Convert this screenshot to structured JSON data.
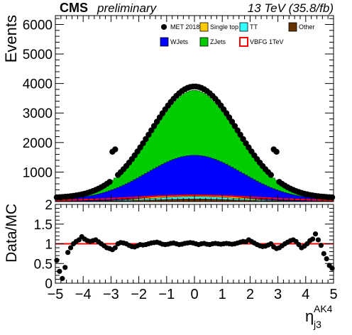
{
  "header": {
    "experiment": "CMS",
    "status": "preliminary",
    "energy": "13 TeV (35.8/fb)"
  },
  "chart_data": [
    {
      "type": "stacked-histogram",
      "ylabel": "Events",
      "xlim": [
        -5,
        5
      ],
      "ylim": [
        0,
        6300
      ],
      "y_ticks": [
        1000,
        2000,
        3000,
        4000,
        5000,
        6000
      ],
      "x_ticks": [
        -5,
        -4,
        -3,
        -2,
        -1,
        0,
        1,
        2,
        3,
        4,
        5
      ],
      "bin_width": 0.1,
      "legend": [
        {
          "name": "MET 2018",
          "style": "marker",
          "color": "#000000"
        },
        {
          "name": "Single top",
          "style": "fill",
          "color": "#ffcc00"
        },
        {
          "name": "TT",
          "style": "fill",
          "color": "#33ffff"
        },
        {
          "name": "Other",
          "style": "fill",
          "color": "#663300"
        },
        {
          "name": "WJets",
          "style": "fill",
          "color": "#0000ff"
        },
        {
          "name": "ZJets",
          "style": "fill",
          "color": "#00cc00"
        },
        {
          "name": "VBFG 1TeV",
          "style": "line",
          "color": "#ff0000"
        }
      ],
      "stack_order": [
        "Other",
        "TT",
        "Single top",
        "WJets",
        "ZJets"
      ],
      "series": [
        {
          "name": "MET 2018",
          "shape": "gaussian",
          "peak": 3900,
          "width": 1.55,
          "floor": 120,
          "spike_x": [
            -2.9,
            2.9
          ],
          "spike_extra": 950
        },
        {
          "name": "ZJets",
          "shape": "gaussian",
          "peak": 2200,
          "width": 1.45,
          "floor": 50
        },
        {
          "name": "WJets",
          "shape": "gaussian",
          "peak": 1330,
          "width": 1.75,
          "floor": 40
        },
        {
          "name": "Single top",
          "shape": "gaussian",
          "peak": 70,
          "width": 1.6,
          "floor": 4
        },
        {
          "name": "TT",
          "shape": "gaussian",
          "peak": 80,
          "width": 1.5,
          "floor": 5
        },
        {
          "name": "Other",
          "shape": "gaussian",
          "peak": 90,
          "width": 1.5,
          "floor": 6
        },
        {
          "name": "VBFG 1TeV",
          "shape": "gaussian",
          "peak": 210,
          "width": 2.2,
          "floor": 30
        }
      ]
    },
    {
      "type": "scatter",
      "ylabel": "Data/MC",
      "xlabel_main": "η",
      "xlabel_sup": "AK4",
      "xlabel_sub": "j3",
      "xlim": [
        -5,
        5
      ],
      "ylim": [
        0,
        2
      ],
      "y_ticks": [
        0,
        0.5,
        1,
        1.5,
        2
      ],
      "y_tick_labels": [
        "0",
        "0.5",
        "1",
        "1.5",
        "2"
      ],
      "x_ticks": [
        -5,
        -4,
        -3,
        -2,
        -1,
        0,
        1,
        2,
        3,
        4,
        5
      ],
      "reference_line": 1,
      "reference_color": "#ff0000",
      "points": [
        [
          -4.95,
          0.58
        ],
        [
          -4.85,
          0.3
        ],
        [
          -4.75,
          0.12
        ],
        [
          -4.65,
          0.4
        ],
        [
          -4.55,
          0.78
        ],
        [
          -4.45,
          0.9
        ],
        [
          -4.35,
          1.0
        ],
        [
          -4.25,
          1.06
        ],
        [
          -4.15,
          1.1
        ],
        [
          -4.05,
          1.18
        ],
        [
          -3.95,
          1.12
        ],
        [
          -3.85,
          1.08
        ],
        [
          -3.75,
          1.06
        ],
        [
          -3.65,
          1.08
        ],
        [
          -3.55,
          1.1
        ],
        [
          -3.45,
          1.05
        ],
        [
          -3.35,
          1.0
        ],
        [
          -3.25,
          0.95
        ],
        [
          -3.15,
          0.9
        ],
        [
          -3.05,
          0.88
        ],
        [
          -2.95,
          0.85
        ],
        [
          -2.85,
          0.9
        ],
        [
          -2.75,
          1.0
        ],
        [
          -2.65,
          1.03
        ],
        [
          -2.55,
          1.02
        ],
        [
          -2.45,
          1.0
        ],
        [
          -2.35,
          0.96
        ],
        [
          -2.25,
          0.93
        ],
        [
          -2.15,
          0.92
        ],
        [
          -2.05,
          0.95
        ],
        [
          -1.95,
          0.98
        ],
        [
          -1.85,
          0.97
        ],
        [
          -1.75,
          0.98
        ],
        [
          -1.65,
          1.0
        ],
        [
          -1.55,
          1.02
        ],
        [
          -1.45,
          1.03
        ],
        [
          -1.35,
          1.04
        ],
        [
          -1.25,
          1.02
        ],
        [
          -1.15,
          0.99
        ],
        [
          -1.05,
          0.98
        ],
        [
          -0.95,
          0.99
        ],
        [
          -0.85,
          1.01
        ],
        [
          -0.75,
          1.02
        ],
        [
          -0.65,
          1.0
        ],
        [
          -0.55,
          0.98
        ],
        [
          -0.45,
          0.99
        ],
        [
          -0.35,
          1.01
        ],
        [
          -0.25,
          1.02
        ],
        [
          -0.15,
          1.03
        ],
        [
          -0.05,
          1.02
        ],
        [
          0.05,
          1.0
        ],
        [
          0.15,
          0.98
        ],
        [
          0.25,
          1.0
        ],
        [
          0.35,
          1.01
        ],
        [
          0.45,
          0.99
        ],
        [
          0.55,
          0.98
        ],
        [
          0.65,
          1.0
        ],
        [
          0.75,
          1.01
        ],
        [
          0.85,
          1.0
        ],
        [
          0.95,
          0.99
        ],
        [
          1.05,
          1.0
        ],
        [
          1.15,
          1.01
        ],
        [
          1.25,
          1.0
        ],
        [
          1.35,
          0.99
        ],
        [
          1.45,
          1.0
        ],
        [
          1.55,
          1.02
        ],
        [
          1.65,
          1.04
        ],
        [
          1.75,
          1.06
        ],
        [
          1.85,
          1.05
        ],
        [
          1.95,
          1.1
        ],
        [
          2.05,
          1.06
        ],
        [
          2.15,
          1.02
        ],
        [
          2.25,
          0.98
        ],
        [
          2.35,
          0.95
        ],
        [
          2.45,
          0.93
        ],
        [
          2.55,
          0.94
        ],
        [
          2.65,
          0.97
        ],
        [
          2.75,
          1.0
        ],
        [
          2.85,
          0.92
        ],
        [
          2.95,
          0.88
        ],
        [
          3.05,
          0.9
        ],
        [
          3.15,
          0.95
        ],
        [
          3.25,
          1.0
        ],
        [
          3.35,
          1.04
        ],
        [
          3.45,
          1.08
        ],
        [
          3.55,
          1.1
        ],
        [
          3.65,
          1.06
        ],
        [
          3.75,
          0.98
        ],
        [
          3.85,
          0.9
        ],
        [
          3.95,
          0.94
        ],
        [
          4.05,
          1.0
        ],
        [
          4.15,
          1.08
        ],
        [
          4.25,
          1.12
        ],
        [
          4.35,
          1.25
        ],
        [
          4.45,
          1.1
        ],
        [
          4.55,
          0.96
        ],
        [
          4.65,
          0.75
        ],
        [
          4.75,
          0.62
        ],
        [
          4.85,
          0.45
        ],
        [
          4.95,
          0.38
        ]
      ]
    }
  ]
}
